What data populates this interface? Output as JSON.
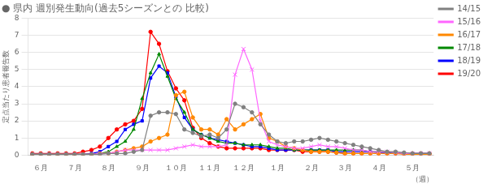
{
  "chart_data": {
    "type": "line",
    "title": "● 県内 週別発生動向(過去5シーズンとの 比較)",
    "xlabel": "（週）",
    "ylabel": "定点当たり患者報告数",
    "categories": [
      null,
      "６月",
      null,
      null,
      null,
      "７月",
      null,
      null,
      null,
      "８月",
      null,
      null,
      null,
      "９月",
      null,
      null,
      null,
      "１０月",
      null,
      null,
      null,
      "１１月",
      null,
      null,
      null,
      "１２月",
      null,
      null,
      null,
      "１月",
      null,
      null,
      null,
      "２月",
      null,
      null,
      null,
      "３月",
      null,
      null,
      null,
      "４月",
      null,
      null,
      null,
      "５月",
      null,
      null
    ],
    "ylim": [
      0,
      8
    ],
    "yticks": [
      0,
      1,
      2,
      3,
      4,
      5,
      6,
      7,
      8
    ],
    "grid": true,
    "legend": "right",
    "series": [
      {
        "name": "14/15",
        "color": "#808080",
        "marker": "circle",
        "values": [
          0.05,
          0.05,
          0.05,
          0.05,
          0.05,
          0.05,
          0.05,
          0.05,
          0.05,
          0.1,
          0.1,
          0.1,
          0.2,
          0.3,
          2.3,
          2.5,
          2.5,
          2.4,
          1.5,
          1.3,
          1.1,
          1.2,
          1.0,
          1.5,
          3.0,
          2.8,
          2.5,
          1.8,
          1.2,
          0.8,
          0.7,
          0.8,
          0.8,
          0.9,
          1.0,
          0.9,
          0.8,
          0.7,
          0.6,
          0.5,
          0.4,
          0.3,
          0.2,
          0.2,
          0.15,
          0.1,
          0.1,
          0.1
        ]
      },
      {
        "name": "15/16",
        "color": "#ff66ff",
        "marker": "cross",
        "values": [
          0.05,
          0.05,
          0.05,
          0.05,
          0.05,
          0.05,
          0.05,
          0.05,
          0.1,
          0.1,
          0.2,
          0.3,
          0.3,
          0.3,
          0.3,
          0.3,
          0.3,
          0.4,
          0.5,
          0.6,
          0.5,
          0.5,
          0.5,
          0.6,
          4.7,
          6.2,
          5.0,
          2.0,
          0.8,
          0.6,
          0.5,
          0.4,
          0.4,
          0.5,
          0.6,
          0.5,
          0.5,
          0.4,
          0.3,
          0.3,
          0.2,
          0.2,
          0.2,
          0.15,
          0.1,
          0.1,
          0.1,
          0.1
        ]
      },
      {
        "name": "16/17",
        "color": "#ff8800",
        "marker": "circle",
        "values": [
          0.05,
          0.05,
          0.05,
          0.05,
          0.05,
          0.05,
          0.05,
          0.05,
          0.1,
          0.1,
          0.2,
          0.3,
          0.4,
          0.5,
          0.8,
          1.0,
          1.2,
          3.5,
          3.7,
          2.2,
          1.5,
          1.5,
          1.2,
          2.1,
          1.5,
          1.8,
          2.1,
          2.4,
          1.0,
          0.8,
          0.5,
          0.4,
          0.3,
          0.2,
          0.2,
          0.2,
          0.15,
          0.1,
          0.1,
          0.1,
          0.1,
          0.1,
          0.1,
          0.1,
          0.05,
          0.05,
          0.05,
          0.05
        ]
      },
      {
        "name": "17/18",
        "color": "#008800",
        "marker": "triangle",
        "values": [
          0.05,
          0.05,
          0.05,
          0.05,
          0.05,
          0.05,
          0.05,
          0.05,
          0.1,
          0.2,
          0.5,
          0.8,
          1.5,
          3.3,
          4.8,
          5.9,
          4.6,
          3.3,
          2.5,
          1.5,
          1.2,
          1.0,
          0.8,
          0.7,
          0.7,
          0.6,
          0.6,
          0.6,
          0.5,
          0.4,
          0.4,
          0.3,
          0.3,
          0.3,
          0.3,
          0.3,
          0.3,
          0.3,
          0.3,
          0.3,
          0.2,
          0.2,
          0.2,
          0.15,
          0.1,
          0.1,
          0.1,
          0.1
        ]
      },
      {
        "name": "18/19",
        "color": "#0000ff",
        "marker": "square",
        "values": [
          0.05,
          0.05,
          0.05,
          0.05,
          0.05,
          0.05,
          0.05,
          0.1,
          0.2,
          0.5,
          0.8,
          1.5,
          1.8,
          2.0,
          4.5,
          5.2,
          4.8,
          3.4,
          2.2,
          1.5,
          1.2,
          1.0,
          0.9,
          0.8,
          0.7,
          0.6,
          0.5,
          0.5,
          0.4,
          0.3,
          0.3,
          0.3,
          0.3,
          0.3,
          0.3,
          0.3,
          0.2,
          0.2,
          0.2,
          0.2,
          0.2,
          0.15,
          0.15,
          0.1,
          0.1,
          0.1,
          0.1,
          0.1
        ]
      },
      {
        "name": "19/20",
        "color": "#ff0000",
        "marker": "circle",
        "values": [
          0.1,
          0.1,
          0.1,
          0.1,
          0.1,
          0.1,
          0.2,
          0.3,
          0.5,
          1.0,
          1.5,
          1.8,
          2.0,
          2.7,
          7.2,
          6.5,
          4.9,
          3.9,
          3.2,
          1.6,
          1.0,
          0.7,
          0.5,
          0.4,
          0.4,
          0.4,
          0.4,
          0.4,
          0.3,
          0.3,
          0.3,
          0.3,
          0.2,
          0.2,
          0.2,
          0.2,
          0.15,
          0.1,
          0.1,
          0.1,
          0.1,
          0.1,
          0.1,
          0.1,
          0.1,
          0.1,
          0.1,
          0.1
        ]
      }
    ]
  }
}
